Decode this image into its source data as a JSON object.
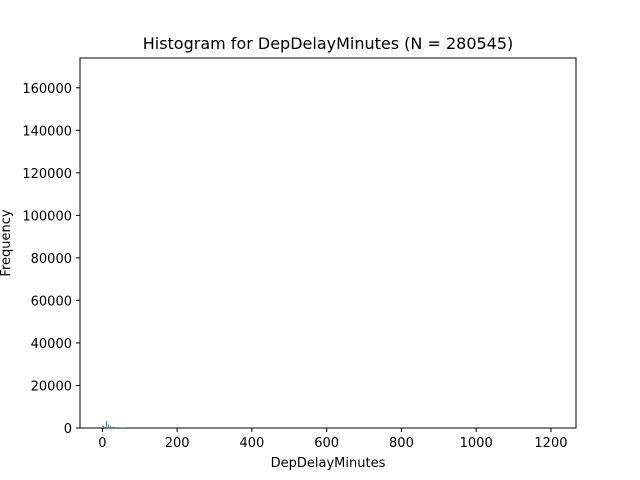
{
  "chart_data": {
    "type": "bar",
    "title": "Histogram for DepDelayMinutes (N = 280545)",
    "xlabel": "DepDelayMinutes",
    "ylabel": "Frequency",
    "xlim": [
      -60,
      1267
    ],
    "ylim": [
      0,
      174000
    ],
    "xticks": [
      0,
      200,
      400,
      600,
      800,
      1000,
      1200
    ],
    "xtick_labels": [
      "0",
      "200",
      "400",
      "600",
      "800",
      "1000",
      "1200"
    ],
    "yticks": [
      0,
      20000,
      40000,
      60000,
      80000,
      100000,
      120000,
      140000,
      160000
    ],
    "ytick_labels": [
      "0",
      "20000",
      "40000",
      "60000",
      "80000",
      "100000",
      "120000",
      "140000",
      "160000"
    ],
    "grid": false,
    "bar_color": "#1f77b4",
    "bin_width": 1,
    "bins": [
      {
        "x": 0,
        "value": 1200
      },
      {
        "x": 1,
        "value": 900
      },
      {
        "x": 2,
        "value": 700
      },
      {
        "x": 3,
        "value": 600
      },
      {
        "x": 5,
        "value": 500
      },
      {
        "x": 7,
        "value": 400
      },
      {
        "x": 10,
        "value": 3400
      },
      {
        "x": 12,
        "value": 300
      },
      {
        "x": 15,
        "value": 1700
      },
      {
        "x": 17,
        "value": 250
      },
      {
        "x": 20,
        "value": 900
      },
      {
        "x": 25,
        "value": 450
      },
      {
        "x": 30,
        "value": 600
      },
      {
        "x": 35,
        "value": 250
      },
      {
        "x": 40,
        "value": 350
      },
      {
        "x": 45,
        "value": 200
      },
      {
        "x": 50,
        "value": 250
      },
      {
        "x": 55,
        "value": 150
      },
      {
        "x": 60,
        "value": 150
      },
      {
        "x": 70,
        "value": 100
      },
      {
        "x": 80,
        "value": 80
      },
      {
        "x": 90,
        "value": 60
      }
    ]
  }
}
